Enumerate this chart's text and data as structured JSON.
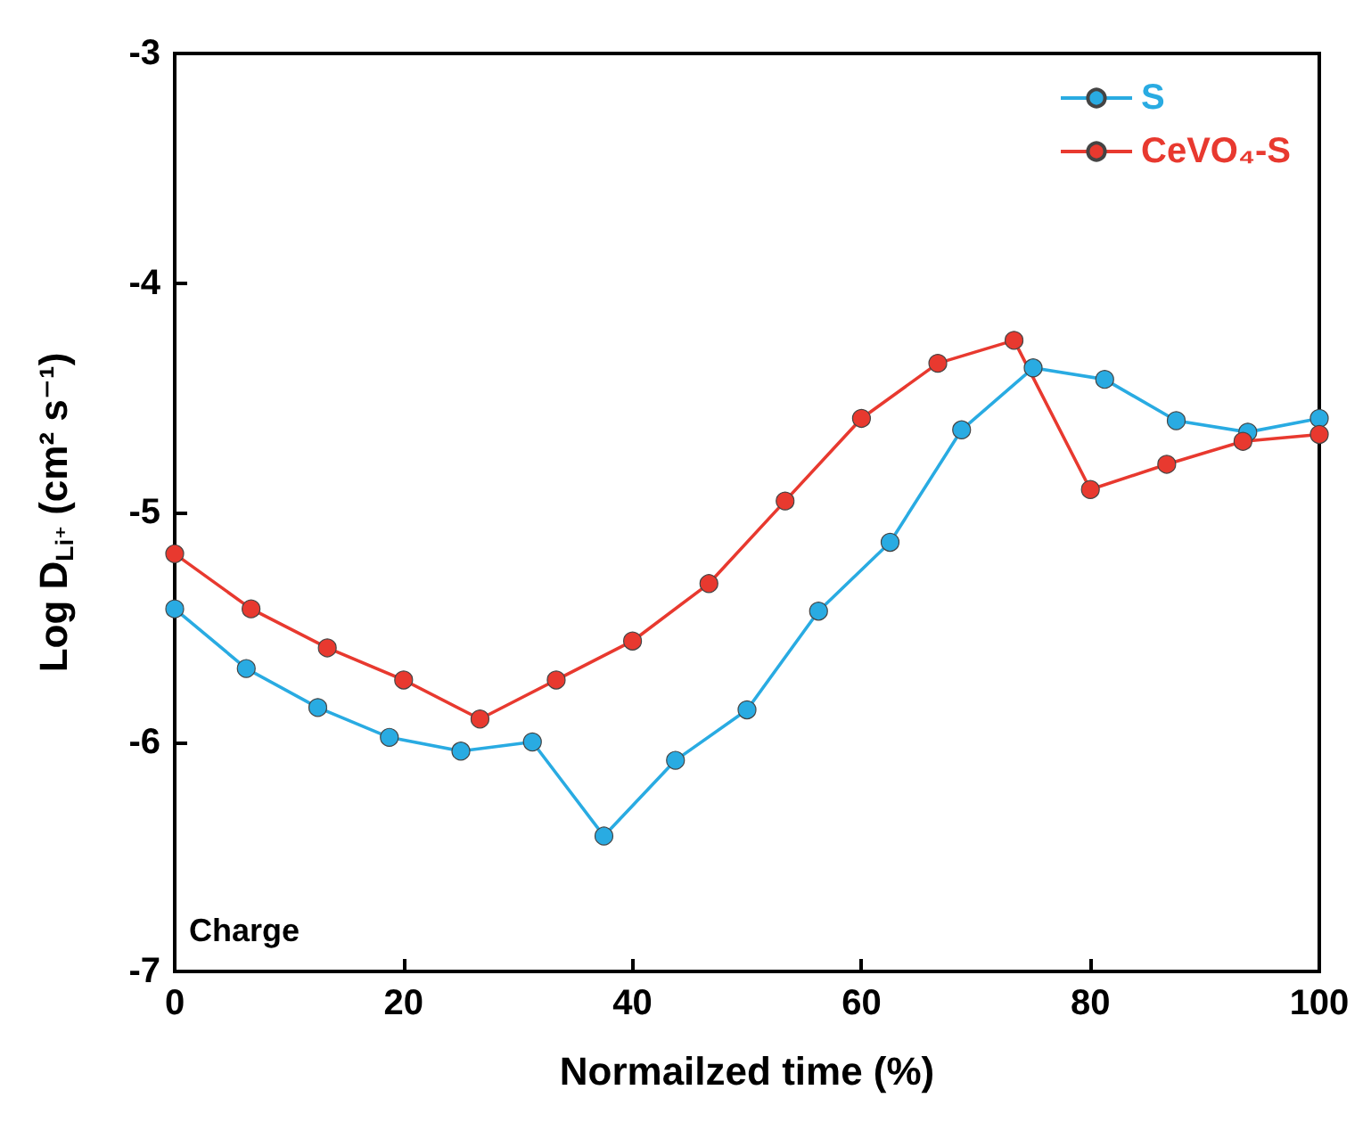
{
  "chart_data": {
    "type": "line",
    "xlabel": "Normailzed time (%)",
    "ylabel": "Log D$_{Li⁺}$ (cm² s⁻¹)",
    "xlim": [
      0,
      100
    ],
    "xticks": [
      0,
      20,
      40,
      60,
      80,
      100
    ],
    "ylim": [
      -7,
      -3
    ],
    "yticks": [
      -7,
      -6,
      -5,
      -4,
      -3
    ],
    "marker": "circle",
    "legend": "top right",
    "annotations": [
      "Charge"
    ],
    "series": [
      {
        "name": "S",
        "color": "#29abe2",
        "x": [
          0,
          6.25,
          12.5,
          18.75,
          25,
          31.25,
          37.5,
          43.75,
          50,
          56.25,
          62.5,
          68.75,
          75,
          81.25,
          87.5,
          93.75,
          100
        ],
        "values": [
          -5.42,
          -5.68,
          -5.85,
          -5.98,
          -6.04,
          -6.0,
          -6.41,
          -6.08,
          -5.86,
          -5.43,
          -5.13,
          -4.64,
          -4.37,
          -4.42,
          -4.6,
          -4.65,
          -4.59
        ]
      },
      {
        "name": "CeVO₄-S",
        "color": "#e8392f",
        "x": [
          0,
          6.67,
          13.33,
          20,
          26.67,
          33.33,
          40,
          46.67,
          53.33,
          60,
          66.67,
          73.33,
          80,
          86.67,
          93.33,
          100
        ],
        "values": [
          -5.18,
          -5.42,
          -5.59,
          -5.73,
          -5.9,
          -5.73,
          -5.56,
          -5.31,
          -4.95,
          -4.59,
          -4.35,
          -4.25,
          -4.9,
          -4.79,
          -4.69,
          -4.66
        ]
      }
    ]
  }
}
